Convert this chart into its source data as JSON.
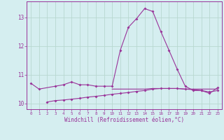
{
  "x": [
    0,
    1,
    2,
    3,
    4,
    5,
    6,
    7,
    8,
    9,
    10,
    11,
    12,
    13,
    14,
    15,
    16,
    17,
    18,
    19,
    20,
    21,
    22,
    23
  ],
  "line1": [
    10.7,
    10.5,
    10.6,
    10.65,
    10.75,
    10.65,
    10.65,
    10.6,
    10.6,
    10.6,
    11.85,
    12.65,
    12.95,
    13.3,
    13.2,
    12.5,
    11.85,
    11.2,
    10.6,
    10.45,
    10.45,
    10.35,
    10.55
  ],
  "line1_x": [
    0,
    1,
    3,
    4,
    5,
    6,
    7,
    8,
    9,
    10,
    11,
    12,
    13,
    14,
    15,
    16,
    17,
    18,
    19,
    20,
    21,
    22,
    23
  ],
  "line2": [
    10.05,
    10.1,
    10.12,
    10.15,
    10.18,
    10.22,
    10.25,
    10.28,
    10.32,
    10.35,
    10.38,
    10.42,
    10.45,
    10.5,
    10.52,
    10.52,
    10.52,
    10.5,
    10.48,
    10.45,
    10.4,
    10.45
  ],
  "line2_x": [
    2,
    3,
    4,
    5,
    6,
    7,
    8,
    9,
    10,
    11,
    12,
    13,
    14,
    15,
    16,
    17,
    18,
    19,
    20,
    21,
    22,
    23
  ],
  "line3_x": [
    10,
    11,
    12,
    13,
    14,
    15,
    16,
    17,
    18,
    19,
    20,
    21,
    22,
    23
  ],
  "line3": [
    10.5,
    10.5,
    10.5,
    10.5,
    10.5,
    10.52,
    10.52,
    10.52,
    10.52,
    10.5,
    10.5,
    10.5,
    10.5,
    10.5
  ],
  "bg_color": "#d5eef0",
  "line_color": "#993399",
  "grid_color": "#b8d8d0",
  "xlabel": "Windchill (Refroidissement éolien,°C)",
  "xlim": [
    -0.5,
    23.5
  ],
  "ylim": [
    9.8,
    13.55
  ],
  "yticks": [
    10,
    11,
    12,
    13
  ],
  "xticks": [
    0,
    1,
    2,
    3,
    4,
    5,
    6,
    7,
    8,
    9,
    10,
    11,
    12,
    13,
    14,
    15,
    16,
    17,
    18,
    19,
    20,
    21,
    22,
    23
  ]
}
